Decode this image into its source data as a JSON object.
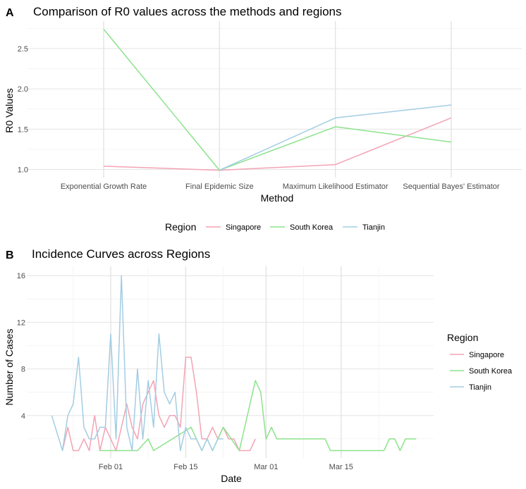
{
  "chart_data": [
    {
      "panel_label": "A",
      "type": "line",
      "title": "Comparison of R0 values across the methods and regions",
      "xlabel": "Method",
      "ylabel": "R0 Values",
      "categories": [
        "Exponential Growth Rate",
        "Final Epidemic Size",
        "Maximum Likelihood Estimator",
        "Sequential Bayes' Estimator"
      ],
      "ylim": [
        0.95,
        2.8
      ],
      "yticks": [
        1.0,
        1.5,
        2.0,
        2.5
      ],
      "ytick_labels": [
        "1.0",
        "1.5",
        "2.0",
        "2.5"
      ],
      "legend_title": "Region",
      "legend_position": "bottom",
      "series": [
        {
          "name": "Singapore",
          "color": "#f4a3b4",
          "values": [
            1.04,
            0.99,
            1.06,
            1.64
          ]
        },
        {
          "name": "South Korea",
          "color": "#8be38b",
          "values": [
            2.74,
            0.99,
            1.53,
            1.34
          ]
        },
        {
          "name": "Tianjin",
          "color": "#a3cde3",
          "values": [
            null,
            0.99,
            1.64,
            1.8
          ]
        }
      ]
    },
    {
      "panel_label": "B",
      "type": "line",
      "title": "Incidence Curves across Regions",
      "xlabel": "Date",
      "ylabel": "Number of Cases",
      "xlim": [
        "2020-01-20",
        "2020-04-04"
      ],
      "xticks": [
        "2020-02-01",
        "2020-02-15",
        "2020-03-01",
        "2020-03-15"
      ],
      "xtick_labels": [
        "Feb 01",
        "Feb 15",
        "Mar 01",
        "Mar 15"
      ],
      "ylim": [
        0,
        16.8
      ],
      "yticks": [
        4,
        8,
        12,
        16
      ],
      "ytick_labels": [
        "4",
        "8",
        "12",
        "16"
      ],
      "legend_title": "Region",
      "legend_position": "right",
      "series": [
        {
          "name": "Singapore",
          "color": "#f4a3b4",
          "x": [
            "2020-01-23",
            "2020-01-24",
            "2020-01-25",
            "2020-01-26",
            "2020-01-27",
            "2020-01-28",
            "2020-01-29",
            "2020-01-30",
            "2020-01-31",
            "2020-02-01",
            "2020-02-02",
            "2020-02-03",
            "2020-02-04",
            "2020-02-05",
            "2020-02-06",
            "2020-02-07",
            "2020-02-08",
            "2020-02-09",
            "2020-02-10",
            "2020-02-11",
            "2020-02-12",
            "2020-02-13",
            "2020-02-14",
            "2020-02-15",
            "2020-02-16",
            "2020-02-17",
            "2020-02-18",
            "2020-02-19",
            "2020-02-20",
            "2020-02-21",
            "2020-02-22",
            "2020-02-23",
            "2020-02-24",
            "2020-02-25",
            "2020-02-26",
            "2020-02-27",
            "2020-02-28"
          ],
          "values": [
            1,
            3,
            1,
            1,
            2,
            1,
            4,
            1,
            3,
            2,
            1,
            3,
            5,
            3,
            2,
            5,
            6,
            7,
            4,
            3,
            4,
            4,
            3,
            9,
            9,
            6,
            2,
            2,
            3,
            2,
            3,
            2,
            2,
            1,
            1,
            1,
            2
          ]
        },
        {
          "name": "South Korea",
          "color": "#8be38b",
          "x": [
            "2020-01-30",
            "2020-01-31",
            "2020-02-01",
            "2020-02-02",
            "2020-02-04",
            "2020-02-05",
            "2020-02-06",
            "2020-02-08",
            "2020-02-09",
            "2020-02-16",
            "2020-02-18",
            "2020-02-19",
            "2020-02-20",
            "2020-02-22",
            "2020-02-25",
            "2020-02-28",
            "2020-02-29",
            "2020-03-01",
            "2020-03-02",
            "2020-03-03",
            "2020-03-11",
            "2020-03-12",
            "2020-03-13",
            "2020-03-18",
            "2020-03-23",
            "2020-03-24",
            "2020-03-25",
            "2020-03-26",
            "2020-03-27",
            "2020-03-28",
            "2020-03-29"
          ],
          "values": [
            1,
            1,
            1,
            1,
            1,
            1,
            1,
            2,
            1,
            3,
            1,
            2,
            1,
            3,
            1,
            7,
            6,
            2,
            3,
            2,
            2,
            2,
            1,
            1,
            1,
            2,
            2,
            1,
            2,
            2,
            2
          ]
        },
        {
          "name": "Tianjin",
          "color": "#a3cde3",
          "x": [
            "2020-01-21",
            "2020-01-23",
            "2020-01-24",
            "2020-01-25",
            "2020-01-26",
            "2020-01-27",
            "2020-01-28",
            "2020-01-29",
            "2020-01-30",
            "2020-01-31",
            "2020-02-01",
            "2020-02-02",
            "2020-02-03",
            "2020-02-04",
            "2020-02-05",
            "2020-02-06",
            "2020-02-07",
            "2020-02-08",
            "2020-02-09",
            "2020-02-10",
            "2020-02-11",
            "2020-02-12",
            "2020-02-13",
            "2020-02-14",
            "2020-02-15",
            "2020-02-16",
            "2020-02-17",
            "2020-02-18",
            "2020-02-19",
            "2020-02-20",
            "2020-02-21",
            "2020-02-22"
          ],
          "values": [
            4,
            1,
            4,
            5,
            9,
            3,
            2,
            2,
            3,
            3,
            11,
            2,
            16,
            3,
            1,
            8,
            2,
            7,
            3,
            11,
            6,
            5,
            6,
            1,
            3,
            2,
            2,
            1,
            2,
            1,
            2,
            2
          ]
        }
      ]
    }
  ]
}
